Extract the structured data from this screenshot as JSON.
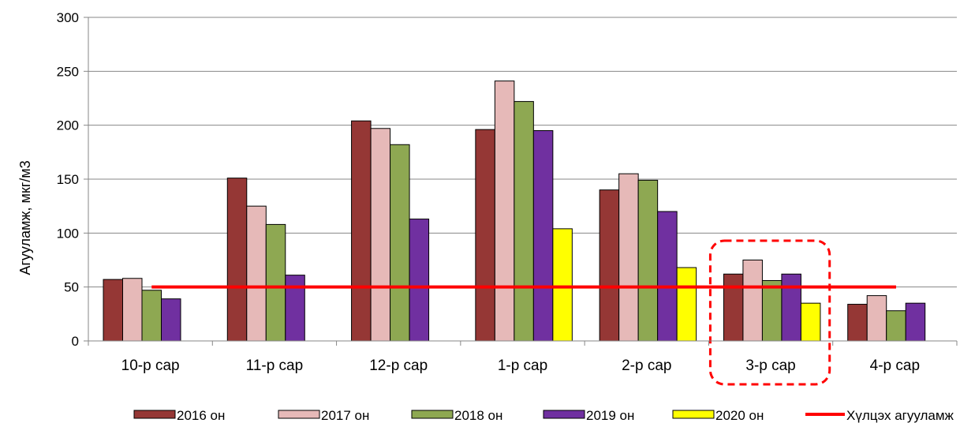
{
  "chart_data": {
    "type": "bar",
    "title": "",
    "xlabel": "",
    "ylabel": "Агууламж, мкг/м3",
    "ylim": [
      0,
      300
    ],
    "yticks": [
      0,
      50,
      100,
      150,
      200,
      250,
      300
    ],
    "grid": true,
    "legend_position": "bottom",
    "categories": [
      "10-р сар",
      "11-р сар",
      "12-р сар",
      "1-р сар",
      "2-р сар",
      "3-р сар",
      "4-р сар"
    ],
    "series": [
      {
        "name": "2016 он",
        "color": "#953735",
        "values": [
          57,
          151,
          204,
          196,
          140,
          62,
          34
        ]
      },
      {
        "name": "2017 он",
        "color": "#E6B9B8",
        "values": [
          58,
          125,
          197,
          241,
          155,
          75,
          42
        ]
      },
      {
        "name": "2018 он",
        "color": "#8EA852",
        "values": [
          47,
          108,
          182,
          222,
          149,
          56,
          28
        ]
      },
      {
        "name": "2019 он",
        "color": "#7030A0",
        "values": [
          39,
          61,
          113,
          195,
          120,
          62,
          35
        ]
      },
      {
        "name": "2020 он",
        "color": "#FFFF00",
        "values": [
          null,
          null,
          null,
          104,
          68,
          35,
          null
        ]
      }
    ],
    "reference_line": {
      "name": "Хүлцэх агууламж",
      "value": 50,
      "color": "#FF0000"
    },
    "highlight": {
      "category": "3-р сар",
      "style": "dashed",
      "color": "#FF0000"
    }
  }
}
